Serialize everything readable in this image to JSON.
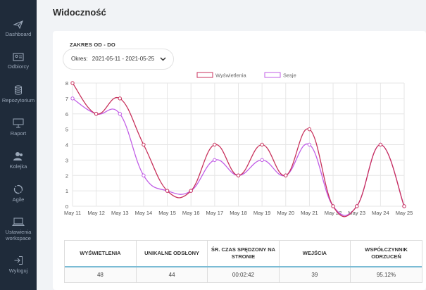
{
  "sidebar": {
    "items": [
      {
        "label": "Dashboard",
        "icon": "paper-plane-icon"
      },
      {
        "label": "Odbiorcy",
        "icon": "contact-card-icon"
      },
      {
        "label": "Repozytorium",
        "icon": "database-icon"
      },
      {
        "label": "Raport",
        "icon": "presentation-board-icon"
      },
      {
        "label": "Kolejka",
        "icon": "user-queue-icon"
      },
      {
        "label": "Agile",
        "icon": "circular-arrows-icon"
      },
      {
        "label": "Ustawienia workspace",
        "icon": "laptop-icon"
      },
      {
        "label": "Wyloguj",
        "icon": "logout-icon"
      }
    ]
  },
  "page": {
    "title": "Widoczność"
  },
  "filter": {
    "label": "ZAKRES OD - DO",
    "prefix": "Okres:",
    "value": "2021-05-11 - 2021-05-25"
  },
  "chart_data": {
    "type": "line",
    "categories": [
      "May 11",
      "May 12",
      "May 13",
      "May 14",
      "May 15",
      "May 16",
      "May 17",
      "May 18",
      "May 19",
      "May 20",
      "May 21",
      "May 22",
      "May 23",
      "May 24",
      "May 25"
    ],
    "series": [
      {
        "name": "Wyświetlenia",
        "color": "#c8325c",
        "values": [
          8,
          6,
          7,
          4,
          1,
          1,
          4,
          2,
          4,
          2,
          5,
          0,
          0,
          4,
          0
        ]
      },
      {
        "name": "Sesje",
        "color": "#c15ee6",
        "values": [
          7,
          6,
          6,
          2,
          1,
          1,
          3,
          2,
          3,
          2,
          4,
          0,
          0,
          4,
          0
        ]
      }
    ],
    "yticks": [
      0,
      1,
      2,
      3,
      4,
      5,
      6,
      7,
      8
    ],
    "ylim": [
      0,
      8
    ],
    "grid": true,
    "legend_position": "top-center"
  },
  "stats": {
    "headers": [
      "WYŚWIETLENIA",
      "UNIKALNE ODSŁONY",
      "ŚR. CZAS SPĘDZONY NA STRONIE",
      "WEJŚCIA",
      "WSPÓŁCZYNNIK ODRZUCEŃ"
    ],
    "values": [
      "48",
      "44",
      "00:02:42",
      "39",
      "95.12%"
    ]
  }
}
